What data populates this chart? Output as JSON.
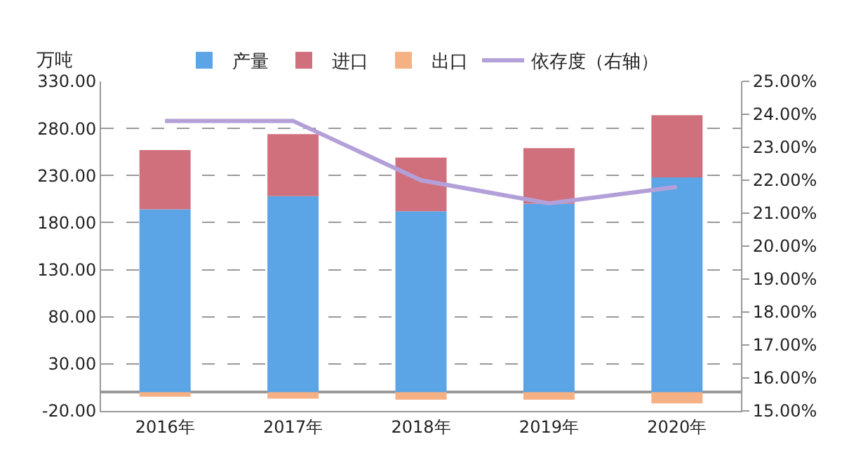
{
  "chart_data": {
    "type": "bar",
    "stacked": true,
    "ylabel": "万吨",
    "categories": [
      "2016年",
      "2017年",
      "2018年",
      "2019年",
      "2020年"
    ],
    "series": [
      {
        "name": "产量",
        "color": "#5ba4e6",
        "values": [
          194,
          208,
          192,
          200,
          228
        ]
      },
      {
        "name": "进口",
        "color": "#d0707c",
        "values": [
          63,
          66,
          57,
          59,
          66
        ]
      },
      {
        "name": "出口",
        "color": "#f5b184",
        "values": [
          -5,
          -7,
          -8,
          -8,
          -12
        ]
      },
      {
        "name": "依存度（右轴）",
        "type": "line",
        "axis": "y2",
        "color": "#b4a0d8",
        "values": [
          23.8,
          23.8,
          22.0,
          21.3,
          21.8
        ]
      }
    ],
    "ylim": [
      -20,
      330
    ],
    "yticks": [
      {
        "value": -20,
        "label": "-20.00"
      },
      {
        "value": 30,
        "label": "30.00"
      },
      {
        "value": 80,
        "label": "80.00"
      },
      {
        "value": 130,
        "label": "130.00"
      },
      {
        "value": 180,
        "label": "180.00"
      },
      {
        "value": 230,
        "label": "230.00"
      },
      {
        "value": 280,
        "label": "280.00"
      },
      {
        "value": 330,
        "label": "330.00"
      }
    ],
    "y2lim": [
      15,
      25
    ],
    "y2ticks": [
      {
        "value": 15,
        "label": "15.00%"
      },
      {
        "value": 16,
        "label": "16.00%"
      },
      {
        "value": 17,
        "label": "17.00%"
      },
      {
        "value": 18,
        "label": "18.00%"
      },
      {
        "value": 19,
        "label": "19.00%"
      },
      {
        "value": 20,
        "label": "20.00%"
      },
      {
        "value": 21,
        "label": "21.00%"
      },
      {
        "value": 22,
        "label": "22.00%"
      },
      {
        "value": 23,
        "label": "23.00%"
      },
      {
        "value": 24,
        "label": "24.00%"
      },
      {
        "value": 25,
        "label": "25.00%"
      }
    ],
    "grid": "y",
    "legend": "top",
    "marker": "none",
    "line_style": "solid"
  }
}
